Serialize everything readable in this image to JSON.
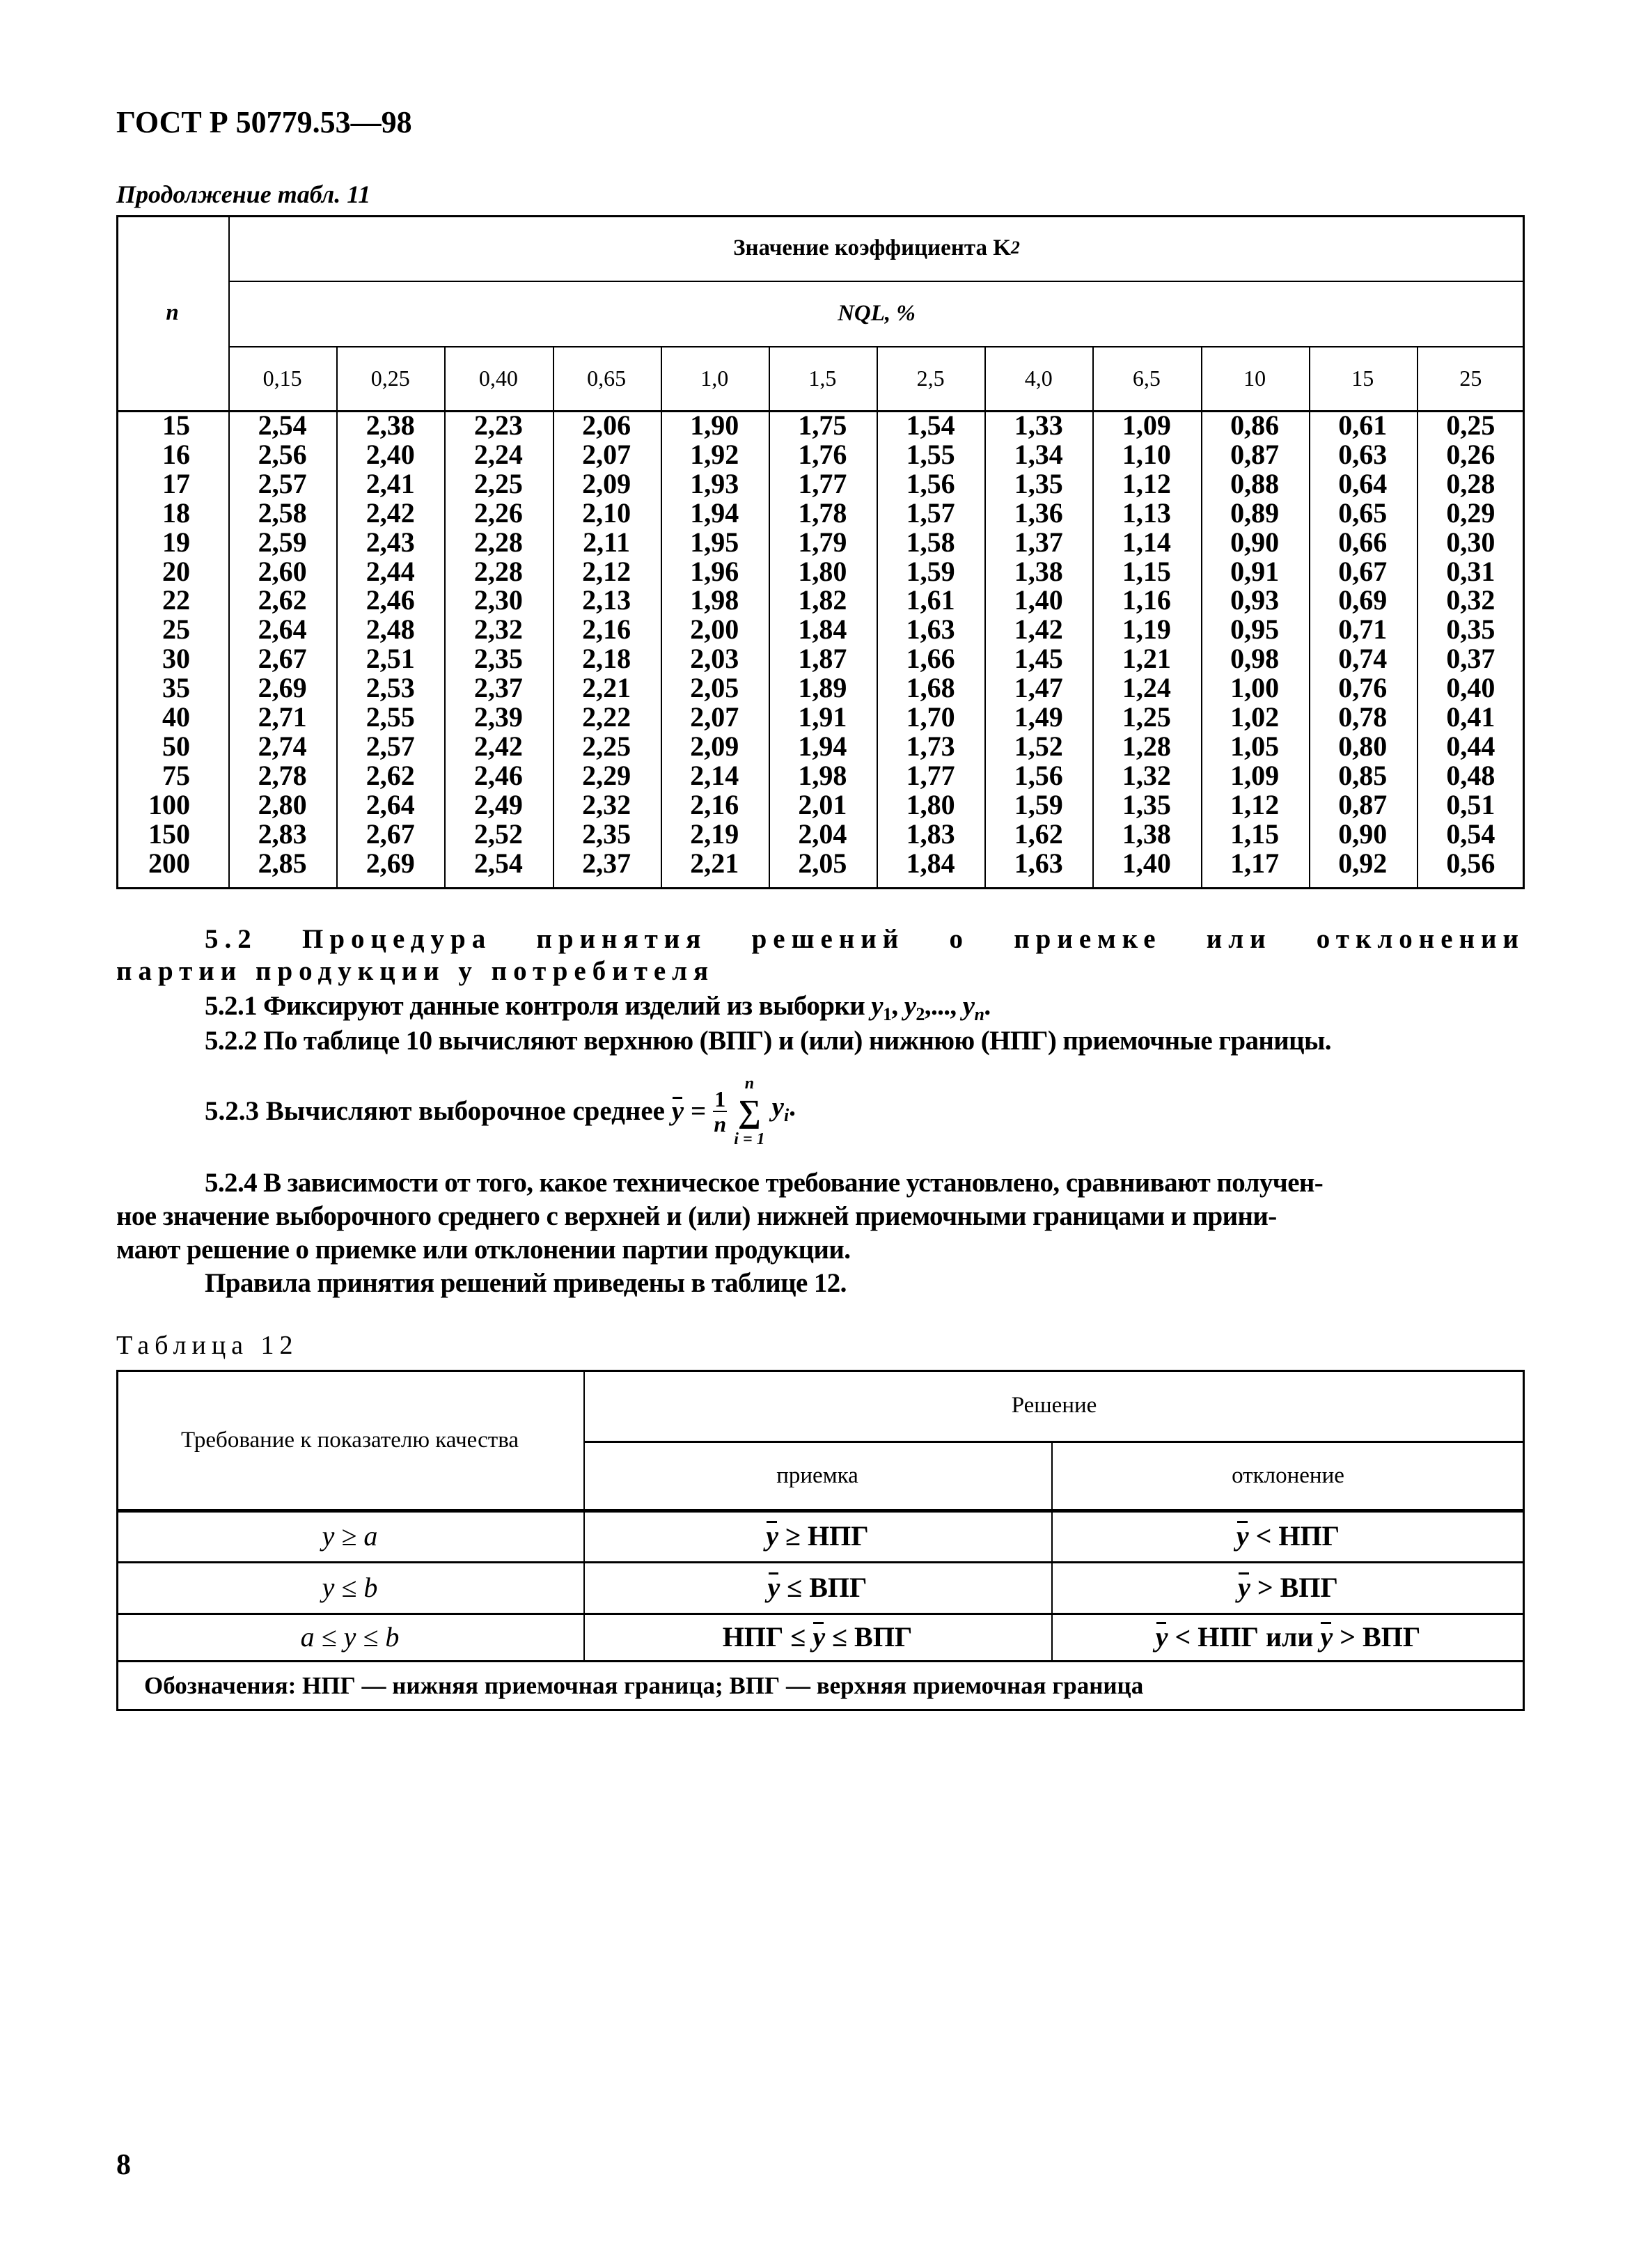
{
  "header": {
    "title": "ГОСТ Р 50779.53—98"
  },
  "continuation": "Продолжение табл. 11",
  "table11": {
    "row_header": "n",
    "group_header": "Значение коэффициента K",
    "group_header_sub": "2",
    "subgroup_header": "NQL, %",
    "columns": [
      "0,15",
      "0,25",
      "0,40",
      "0,65",
      "1,0",
      "1,5",
      "2,5",
      "4,0",
      "6,5",
      "10",
      "15",
      "25"
    ],
    "n": [
      "15",
      "16",
      "17",
      "18",
      "19",
      "20",
      "22",
      "25",
      "30",
      "35",
      "40",
      "50",
      "75",
      "100",
      "150",
      "200"
    ],
    "values": [
      [
        "2,54",
        "2,56",
        "2,57",
        "2,58",
        "2,59",
        "2,60",
        "2,62",
        "2,64",
        "2,67",
        "2,69",
        "2,71",
        "2,74",
        "2,78",
        "2,80",
        "2,83",
        "2,85"
      ],
      [
        "2,38",
        "2,40",
        "2,41",
        "2,42",
        "2,43",
        "2,44",
        "2,46",
        "2,48",
        "2,51",
        "2,53",
        "2,55",
        "2,57",
        "2,62",
        "2,64",
        "2,67",
        "2,69"
      ],
      [
        "2,23",
        "2,24",
        "2,25",
        "2,26",
        "2,28",
        "2,28",
        "2,30",
        "2,32",
        "2,35",
        "2,37",
        "2,39",
        "2,42",
        "2,46",
        "2,49",
        "2,52",
        "2,54"
      ],
      [
        "2,06",
        "2,07",
        "2,09",
        "2,10",
        "2,11",
        "2,12",
        "2,13",
        "2,16",
        "2,18",
        "2,21",
        "2,22",
        "2,25",
        "2,29",
        "2,32",
        "2,35",
        "2,37"
      ],
      [
        "1,90",
        "1,92",
        "1,93",
        "1,94",
        "1,95",
        "1,96",
        "1,98",
        "2,00",
        "2,03",
        "2,05",
        "2,07",
        "2,09",
        "2,14",
        "2,16",
        "2,19",
        "2,21"
      ],
      [
        "1,75",
        "1,76",
        "1,77",
        "1,78",
        "1,79",
        "1,80",
        "1,82",
        "1,84",
        "1,87",
        "1,89",
        "1,91",
        "1,94",
        "1,98",
        "2,01",
        "2,04",
        "2,05"
      ],
      [
        "1,54",
        "1,55",
        "1,56",
        "1,57",
        "1,58",
        "1,59",
        "1,61",
        "1,63",
        "1,66",
        "1,68",
        "1,70",
        "1,73",
        "1,77",
        "1,80",
        "1,83",
        "1,84"
      ],
      [
        "1,33",
        "1,34",
        "1,35",
        "1,36",
        "1,37",
        "1,38",
        "1,40",
        "1,42",
        "1,45",
        "1,47",
        "1,49",
        "1,52",
        "1,56",
        "1,59",
        "1,62",
        "1,63"
      ],
      [
        "1,09",
        "1,10",
        "1,12",
        "1,13",
        "1,14",
        "1,15",
        "1,16",
        "1,19",
        "1,21",
        "1,24",
        "1,25",
        "1,28",
        "1,32",
        "1,35",
        "1,38",
        "1,40"
      ],
      [
        "0,86",
        "0,87",
        "0,88",
        "0,89",
        "0,90",
        "0,91",
        "0,93",
        "0,95",
        "0,98",
        "1,00",
        "1,02",
        "1,05",
        "1,09",
        "1,12",
        "1,15",
        "1,17"
      ],
      [
        "0,61",
        "0,63",
        "0,64",
        "0,65",
        "0,66",
        "0,67",
        "0,69",
        "0,71",
        "0,74",
        "0,76",
        "0,78",
        "0,80",
        "0,85",
        "0,87",
        "0,90",
        "0,92"
      ],
      [
        "0,25",
        "0,26",
        "0,28",
        "0,29",
        "0,30",
        "0,31",
        "0,32",
        "0,35",
        "0,37",
        "0,40",
        "0,41",
        "0,44",
        "0,48",
        "0,51",
        "0,54",
        "0,56"
      ]
    ]
  },
  "section": {
    "heading_l1": "5.2 Процедура принятия решений о приемке или отклонении",
    "heading_l2": "партии продукции у потребителя",
    "p521_text": "5.2.1 Фиксируют данные контроля изделий из выборки ",
    "p521_vars": [
      "y",
      "1",
      ", ",
      "y",
      "2",
      ",..., ",
      "y",
      "n",
      "."
    ],
    "p522": "5.2.2 По таблице 10 вычисляют верхнюю (ВПГ) и (или) нижнюю (НПГ) приемочные границы.",
    "p523_text": "5.2.3 Вычисляют выборочное среднее ",
    "formula": {
      "lhs": "y",
      "eq": "=",
      "num": "1",
      "den": "n",
      "sum": "∑",
      "sum_top": "n",
      "sum_bottom": "i = 1",
      "term": "y",
      "term_sub": "i",
      "end": "."
    },
    "p524": "5.2.4 В зависимости от того, какое техническое требование установлено, сравнивают получен-ное значение выборочного среднего с верхней и (или) нижней приемочными границами и принимают решение о приемке или отклонении партии продукции.",
    "p524_l1": "5.2.4 В зависимости от того, какое техническое требование установлено, сравнивают получен-",
    "p524_l2": "ное значение выборочного среднего с верхней и (или) нижней приемочными границами и прини-",
    "p524_l3": "мают решение о приемке или отклонении партии продукции.",
    "p525": "Правила принятия решений приведены в таблице 12."
  },
  "table12": {
    "caption": "Таблица 12",
    "col1_header": "Требование к показателю качества",
    "decision_header": "Решение",
    "accept_header": "приемка",
    "reject_header": "отклонение",
    "rows": [
      {
        "req": "y ≥ a",
        "accept": [
          {
            "t": "y",
            "bar": true
          },
          {
            "t": " ≥ НПГ"
          }
        ],
        "reject": [
          {
            "t": "y",
            "bar": true
          },
          {
            "t": " < НПГ"
          }
        ]
      },
      {
        "req": "y ≤ b",
        "accept": [
          {
            "t": "y",
            "bar": true
          },
          {
            "t": " ≤ ВПГ"
          }
        ],
        "reject": [
          {
            "t": "y",
            "bar": true
          },
          {
            "t": " > ВПГ"
          }
        ]
      },
      {
        "req": "a ≤ y ≤ b",
        "accept": [
          {
            "t": "НПГ ≤ "
          },
          {
            "t": "y",
            "bar": true
          },
          {
            "t": " ≤ ВПГ"
          }
        ],
        "reject": [
          {
            "t": "y",
            "bar": true
          },
          {
            "t": " < НПГ или "
          },
          {
            "t": "y",
            "bar": true
          },
          {
            "t": " > ВПГ"
          }
        ]
      }
    ],
    "note": "Обозначения: НПГ — нижняя приемочная граница; ВПГ — верхняя приемочная граница"
  },
  "page_number": "8"
}
